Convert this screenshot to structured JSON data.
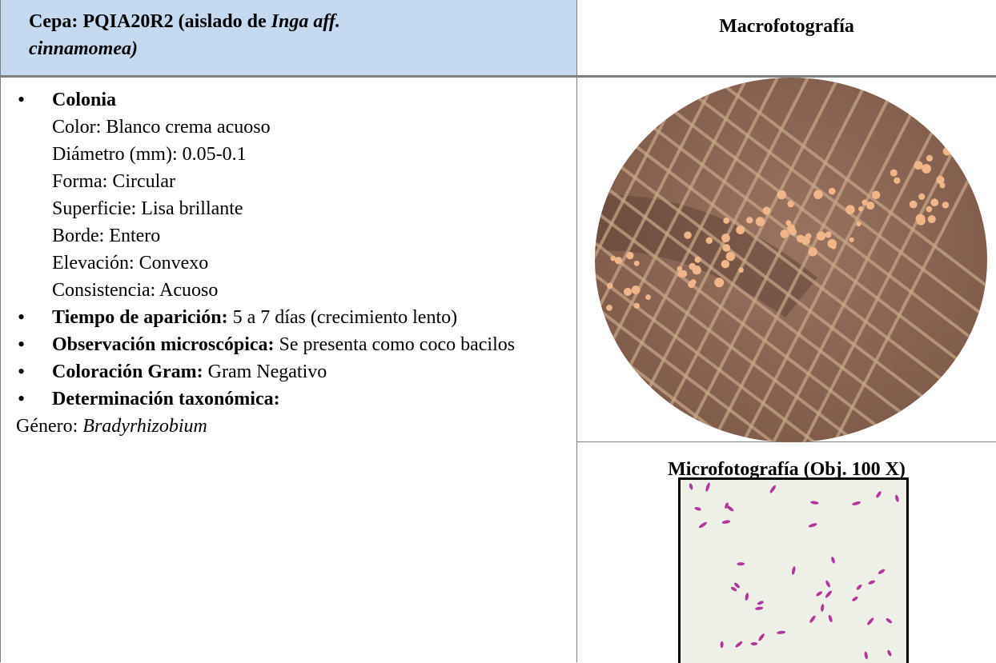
{
  "header": {
    "strain_label": "Cepa: PQIA20R2 (aislado de ",
    "host_italic": "Inga aff.",
    "host_line2": "cinnamomea)",
    "macro_title": "Macrofotografía"
  },
  "colony": {
    "heading": "Colonia",
    "properties": [
      "Color: Blanco crema acuoso",
      "Diámetro (mm): 0.05-0.1",
      "Forma: Circular",
      "Superficie: Lisa brillante",
      "Borde: Entero",
      "Elevación: Convexo",
      "Consistencia: Acuoso"
    ]
  },
  "items": [
    {
      "label": "Tiempo de aparición:",
      "text": " 5 a 7 días (crecimiento lento)"
    },
    {
      "label": "Observación microscópica:",
      "text": " Se presenta como coco bacilos"
    },
    {
      "label": "Coloración Gram:",
      "text": " Gram Negativo"
    },
    {
      "label": "Determinación taxonómica:",
      "text": ""
    }
  ],
  "genus": {
    "label": "Género: ",
    "value": "Bradyrhizobium"
  },
  "micro_title": "Microfotografía (Obj. 100 X)"
}
